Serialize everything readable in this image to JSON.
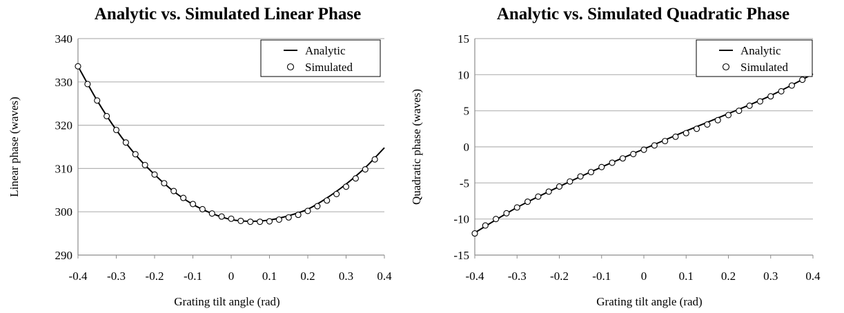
{
  "chart_data": [
    {
      "type": "line",
      "title": "Analytic vs. Simulated Linear Phase",
      "xlabel": "Grating tilt angle (rad)",
      "ylabel": "Linear phase (waves)",
      "xlim": [
        -0.4,
        0.4
      ],
      "ylim": [
        290,
        340
      ],
      "xticks": [
        "-0.4",
        "-0.3",
        "-0.2",
        "-0.1",
        "0",
        "0.1",
        "0.2",
        "0.3",
        "0.4"
      ],
      "yticks": [
        "290",
        "300",
        "310",
        "320",
        "330",
        "340"
      ],
      "grid": "horizontal",
      "legend_position": "top-right",
      "series": [
        {
          "name": "Analytic",
          "style": "line",
          "x": [
            -0.4,
            -0.35,
            -0.3,
            -0.25,
            -0.2,
            -0.15,
            -0.1,
            -0.05,
            0,
            0.05,
            0.1,
            0.15,
            0.2,
            0.25,
            0.3,
            0.35,
            0.4
          ],
          "y": [
            333.6,
            325.7,
            318.9,
            313.2,
            308.6,
            304.7,
            301.7,
            299.6,
            298.2,
            297.8,
            298.1,
            299.1,
            300.6,
            303.2,
            306.4,
            310.2,
            314.8
          ]
        },
        {
          "name": "Simulated",
          "style": "marker",
          "x": [
            -0.4,
            -0.375,
            -0.35,
            -0.325,
            -0.3,
            -0.275,
            -0.25,
            -0.225,
            -0.2,
            -0.175,
            -0.15,
            -0.125,
            -0.1,
            -0.075,
            -0.05,
            -0.025,
            0,
            0.025,
            0.05,
            0.075,
            0.1,
            0.125,
            0.15,
            0.175,
            0.2,
            0.225,
            0.25,
            0.275,
            0.3,
            0.325,
            0.35,
            0.375
          ],
          "y": [
            333.6,
            329.5,
            325.7,
            322.1,
            318.9,
            316.0,
            313.3,
            310.8,
            308.6,
            306.6,
            304.8,
            303.2,
            301.8,
            300.6,
            299.6,
            298.9,
            298.4,
            297.9,
            297.7,
            297.7,
            297.8,
            298.2,
            298.7,
            299.3,
            300.2,
            301.3,
            302.6,
            304.1,
            305.8,
            307.7,
            309.8,
            312.1
          ]
        }
      ]
    },
    {
      "type": "line",
      "title": "Analytic vs. Simulated Quadratic Phase",
      "xlabel": "Grating tilt angle (rad)",
      "ylabel": "Quadratic phase (waves)",
      "xlim": [
        -0.4,
        0.4
      ],
      "ylim": [
        -15,
        15
      ],
      "xticks": [
        "-0.4",
        "-0.3",
        "-0.2",
        "-0.1",
        "0",
        "0.1",
        "0.2",
        "0.3",
        "0.4"
      ],
      "yticks": [
        "-15",
        "-10",
        "-5",
        "0",
        "5",
        "10",
        "15"
      ],
      "grid": "horizontal",
      "legend_position": "top-right",
      "series": [
        {
          "name": "Analytic",
          "style": "line",
          "x": [
            -0.4,
            -0.3,
            -0.2,
            -0.1,
            0,
            0.1,
            0.2,
            0.3,
            0.4
          ],
          "y": [
            -11.9,
            -8.4,
            -5.5,
            -2.8,
            -0.3,
            2.2,
            4.6,
            7.1,
            10.1
          ]
        },
        {
          "name": "Simulated",
          "style": "marker",
          "x": [
            -0.4,
            -0.375,
            -0.35,
            -0.325,
            -0.3,
            -0.275,
            -0.25,
            -0.225,
            -0.2,
            -0.175,
            -0.15,
            -0.125,
            -0.1,
            -0.075,
            -0.05,
            -0.025,
            0,
            0.025,
            0.05,
            0.075,
            0.1,
            0.125,
            0.15,
            0.175,
            0.2,
            0.225,
            0.25,
            0.275,
            0.3,
            0.325,
            0.35,
            0.375
          ],
          "y": [
            -12.0,
            -10.9,
            -10.0,
            -9.2,
            -8.4,
            -7.6,
            -6.9,
            -6.2,
            -5.5,
            -4.8,
            -4.1,
            -3.5,
            -2.8,
            -2.2,
            -1.6,
            -1.0,
            -0.4,
            0.2,
            0.8,
            1.4,
            1.9,
            2.5,
            3.1,
            3.7,
            4.4,
            5.0,
            5.7,
            6.3,
            7.0,
            7.7,
            8.5,
            9.3
          ]
        }
      ]
    }
  ]
}
